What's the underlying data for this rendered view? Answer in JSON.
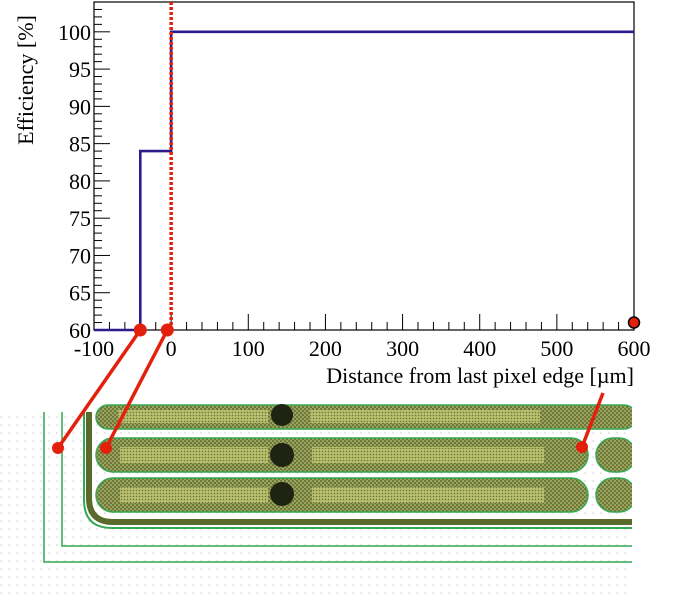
{
  "chart_data": {
    "type": "line",
    "title": "",
    "xlabel": "Distance from last pixel edge [µm]",
    "ylabel": "Efficiency [%]",
    "xlim": [
      -100,
      600
    ],
    "ylim": [
      60,
      104
    ],
    "xticks": [
      -100,
      0,
      100,
      200,
      300,
      400,
      500,
      600
    ],
    "yticks": [
      60,
      65,
      70,
      75,
      80,
      85,
      90,
      95,
      100
    ],
    "grid": false,
    "legend": "none",
    "series": [
      {
        "name": "",
        "color": "#2b1b8c",
        "style": "step",
        "steps": [
          {
            "x0": -100,
            "x1": -40,
            "y": 60
          },
          {
            "x0": -40,
            "x1": 0,
            "y": 84
          },
          {
            "x0": 0,
            "x1": 600,
            "y": 100
          }
        ]
      }
    ],
    "reference_line": {
      "x": 0,
      "color": "#e3200c",
      "style": "dotted"
    },
    "markers": [
      {
        "x": -40,
        "y": 60,
        "color": "#e3200c"
      },
      {
        "x": -5,
        "y": 60,
        "color": "#e3200c"
      },
      {
        "x": 600,
        "y": 61,
        "color": "#e3200c"
      }
    ]
  },
  "colors": {
    "accent": "#e3200c",
    "series": "#2b1b8c",
    "sensor_guard": "#34a853",
    "pixel_fill": "#8f9a4f",
    "pixel_dark": "#556b2f"
  }
}
